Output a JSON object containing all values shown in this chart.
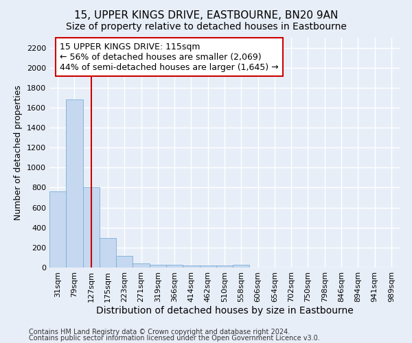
{
  "title": "15, UPPER KINGS DRIVE, EASTBOURNE, BN20 9AN",
  "subtitle": "Size of property relative to detached houses in Eastbourne",
  "xlabel": "Distribution of detached houses by size in Eastbourne",
  "ylabel": "Number of detached properties",
  "footnote1": "Contains HM Land Registry data © Crown copyright and database right 2024.",
  "footnote2": "Contains public sector information licensed under the Open Government Licence v3.0.",
  "bar_labels": [
    "31sqm",
    "79sqm",
    "127sqm",
    "175sqm",
    "223sqm",
    "271sqm",
    "319sqm",
    "366sqm",
    "414sqm",
    "462sqm",
    "510sqm",
    "558sqm",
    "606sqm",
    "654sqm",
    "702sqm",
    "750sqm",
    "798sqm",
    "846sqm",
    "894sqm",
    "941sqm",
    "989sqm"
  ],
  "bar_values": [
    760,
    1680,
    800,
    295,
    115,
    40,
    30,
    25,
    22,
    20,
    18,
    25,
    0,
    0,
    0,
    0,
    0,
    0,
    0,
    0,
    0
  ],
  "bar_color": "#c5d8f0",
  "bar_edge_color": "#7aaed6",
  "ylim": [
    0,
    2300
  ],
  "yticks": [
    0,
    200,
    400,
    600,
    800,
    1000,
    1200,
    1400,
    1600,
    1800,
    2000,
    2200
  ],
  "vline_x": 2.0,
  "vline_color": "#cc0000",
  "annotation_text_line1": "15 UPPER KINGS DRIVE: 115sqm",
  "annotation_text_line2": "← 56% of detached houses are smaller (2,069)",
  "annotation_text_line3": "44% of semi-detached houses are larger (1,645) →",
  "background_color": "#e8eef8",
  "grid_color": "#ffffff",
  "title_fontsize": 11,
  "subtitle_fontsize": 10,
  "ylabel_fontsize": 9,
  "xlabel_fontsize": 10,
  "annotation_fontsize": 9,
  "tick_fontsize": 8,
  "footnote_fontsize": 7
}
